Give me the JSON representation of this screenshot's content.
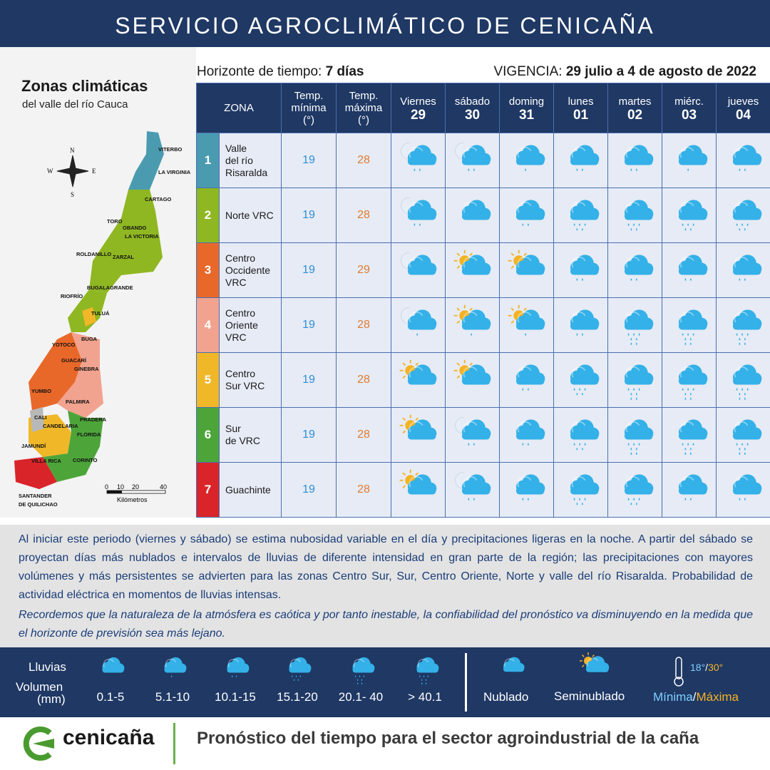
{
  "header": {
    "title": "SERVICIO AGROCLIMÁTICO DE CENICAÑA"
  },
  "map": {
    "title": "Zonas climáticas",
    "subtitle": "del valle del río Cauca",
    "compass": {
      "n": "N",
      "s": "S",
      "e": "E",
      "w": "W"
    },
    "towns": [
      "VITERBO",
      "LA VIRGINIA",
      "CARTAGO",
      "TORO",
      "OBANDO",
      "LA VICTORIA",
      "ROLDANILLO",
      "ZARZAL",
      "BUGALAGRANDE",
      "RIOFRÍO",
      "TULUÁ",
      "BUGA",
      "YOTOCO",
      "GUACARÍ",
      "GINEBRA",
      "YUMBO",
      "PALMIRA",
      "CALI",
      "CANDELARIA",
      "PRADERA",
      "FLORIDA",
      "JAMUNDÍ",
      "VILLA RICA",
      "CORINTO",
      "SANTANDER",
      "DE QUILICHAO"
    ],
    "scale": {
      "ticks": [
        "0",
        "10",
        "20",
        "40"
      ],
      "unit": "Kilómetros"
    }
  },
  "meta": {
    "horizon_label": "Horizonte de tiempo:",
    "horizon_value": "7 días",
    "validity_label": "VIGENCIA:",
    "validity_value": "29 julio a 4 de agosto de 2022"
  },
  "table": {
    "headers": {
      "zone": "ZONA",
      "tmin_1": "Temp.",
      "tmin_2": "mínima",
      "tmin_3": "(°)",
      "tmax_1": "Temp.",
      "tmax_2": "máxima",
      "tmax_3": "(°)"
    },
    "days": [
      {
        "name": "Viernes",
        "num": "29"
      },
      {
        "name": "sábado",
        "num": "30"
      },
      {
        "name": "doming",
        "num": "31"
      },
      {
        "name": "lunes",
        "num": "01"
      },
      {
        "name": "martes",
        "num": "02"
      },
      {
        "name": "miérc.",
        "num": "03"
      },
      {
        "name": "jueves",
        "num": "04"
      }
    ],
    "zones": [
      {
        "n": "1",
        "name": [
          "Valle",
          "del río",
          "Risaralda"
        ],
        "tmin": "19",
        "tmax": "28",
        "color": "#4a9bb0",
        "icons": [
          "moon-2",
          "moon-2",
          "cloud-1",
          "cloud-2",
          "cloud-2",
          "cloud-1",
          "cloud-2"
        ]
      },
      {
        "n": "2",
        "name": [
          "Norte VRC"
        ],
        "tmin": "19",
        "tmax": "28",
        "color": "#8fb722",
        "icons": [
          "moon-2",
          "cloud-0",
          "cloud-2",
          "cloud-3",
          "cloud-3",
          "cloud-3",
          "cloud-3"
        ]
      },
      {
        "n": "3",
        "name": [
          "Centro",
          "Occidente",
          "VRC"
        ],
        "tmin": "19",
        "tmax": "29",
        "color": "#e8682a",
        "icons": [
          "moon-0",
          "sun-0",
          "sun-0",
          "cloud-2",
          "cloud-2",
          "cloud-2",
          "cloud-2"
        ]
      },
      {
        "n": "4",
        "name": [
          "Centro",
          "Oriente",
          "VRC"
        ],
        "tmin": "19",
        "tmax": "28",
        "color": "#f1a38f",
        "icons": [
          "moon-1",
          "sun-1",
          "sun-1",
          "cloud-2",
          "cloud-5",
          "cloud-5",
          "cloud-4"
        ]
      },
      {
        "n": "5",
        "name": [
          "Centro",
          "Sur VRC"
        ],
        "tmin": "19",
        "tmax": "28",
        "color": "#f0b728",
        "icons": [
          "sun-0",
          "sun-0",
          "cloud-2",
          "cloud-3",
          "cloud-5",
          "cloud-5",
          "cloud-5"
        ]
      },
      {
        "n": "6",
        "name": [
          "Sur",
          "de VRC"
        ],
        "tmin": "19",
        "tmax": "28",
        "color": "#4da53a",
        "icons": [
          "sun-0",
          "moon-2",
          "cloud-2",
          "cloud-3",
          "cloud-5",
          "cloud-5",
          "cloud-4"
        ]
      },
      {
        "n": "7",
        "name": [
          "Guachinte"
        ],
        "tmin": "19",
        "tmax": "28",
        "color": "#d9252a",
        "icons": [
          "sun-0",
          "moon-2",
          "cloud-2",
          "cloud-3",
          "cloud-3",
          "cloud-2",
          "cloud-2"
        ]
      }
    ]
  },
  "description": {
    "p1": "Al iniciar este periodo (viernes y sábado) se estima nubosidad variable en el día y precipitaciones ligeras en la noche. A partir del sábado se proyectan días más nublados e intervalos de lluvias de diferente intensidad en gran parte de la región; las precipitaciones con mayores volúmenes y más persistentes se advierten para las zonas Centro Sur, Sur, Centro Oriente, Norte y valle del río Risaralda. Probabilidad de actividad eléctrica en momentos de lluvias intensas.",
    "p2": "Recordemos que la naturaleza de la atmósfera es caótica y por tanto inestable, la confiabilidad del pronóstico va disminuyendo en la medida que el horizonte de previsión sea más lejano."
  },
  "legend": {
    "rain_label": "Lluvias",
    "volume_label": "Volumen",
    "unit_label": "(mm)",
    "ranges": [
      "0.1-5",
      "5.1-10",
      "10.1-15",
      "15.1-20",
      "20.1- 40",
      "> 40.1"
    ],
    "cloudy": "Nublado",
    "partly": "Seminublado",
    "temp_example_min": "18°",
    "temp_sep": "/",
    "temp_example_max": "30°",
    "min_label": "Mínima",
    "max_label": "Máxima"
  },
  "footer": {
    "brand": "cenicaña",
    "slogan": "Pronóstico del tiempo para el sector agroindustrial de la caña"
  },
  "colors": {
    "navy": "#1f3864",
    "cloud": "#33b1e8",
    "sun": "#f5b323",
    "moon": "#ffffff"
  }
}
